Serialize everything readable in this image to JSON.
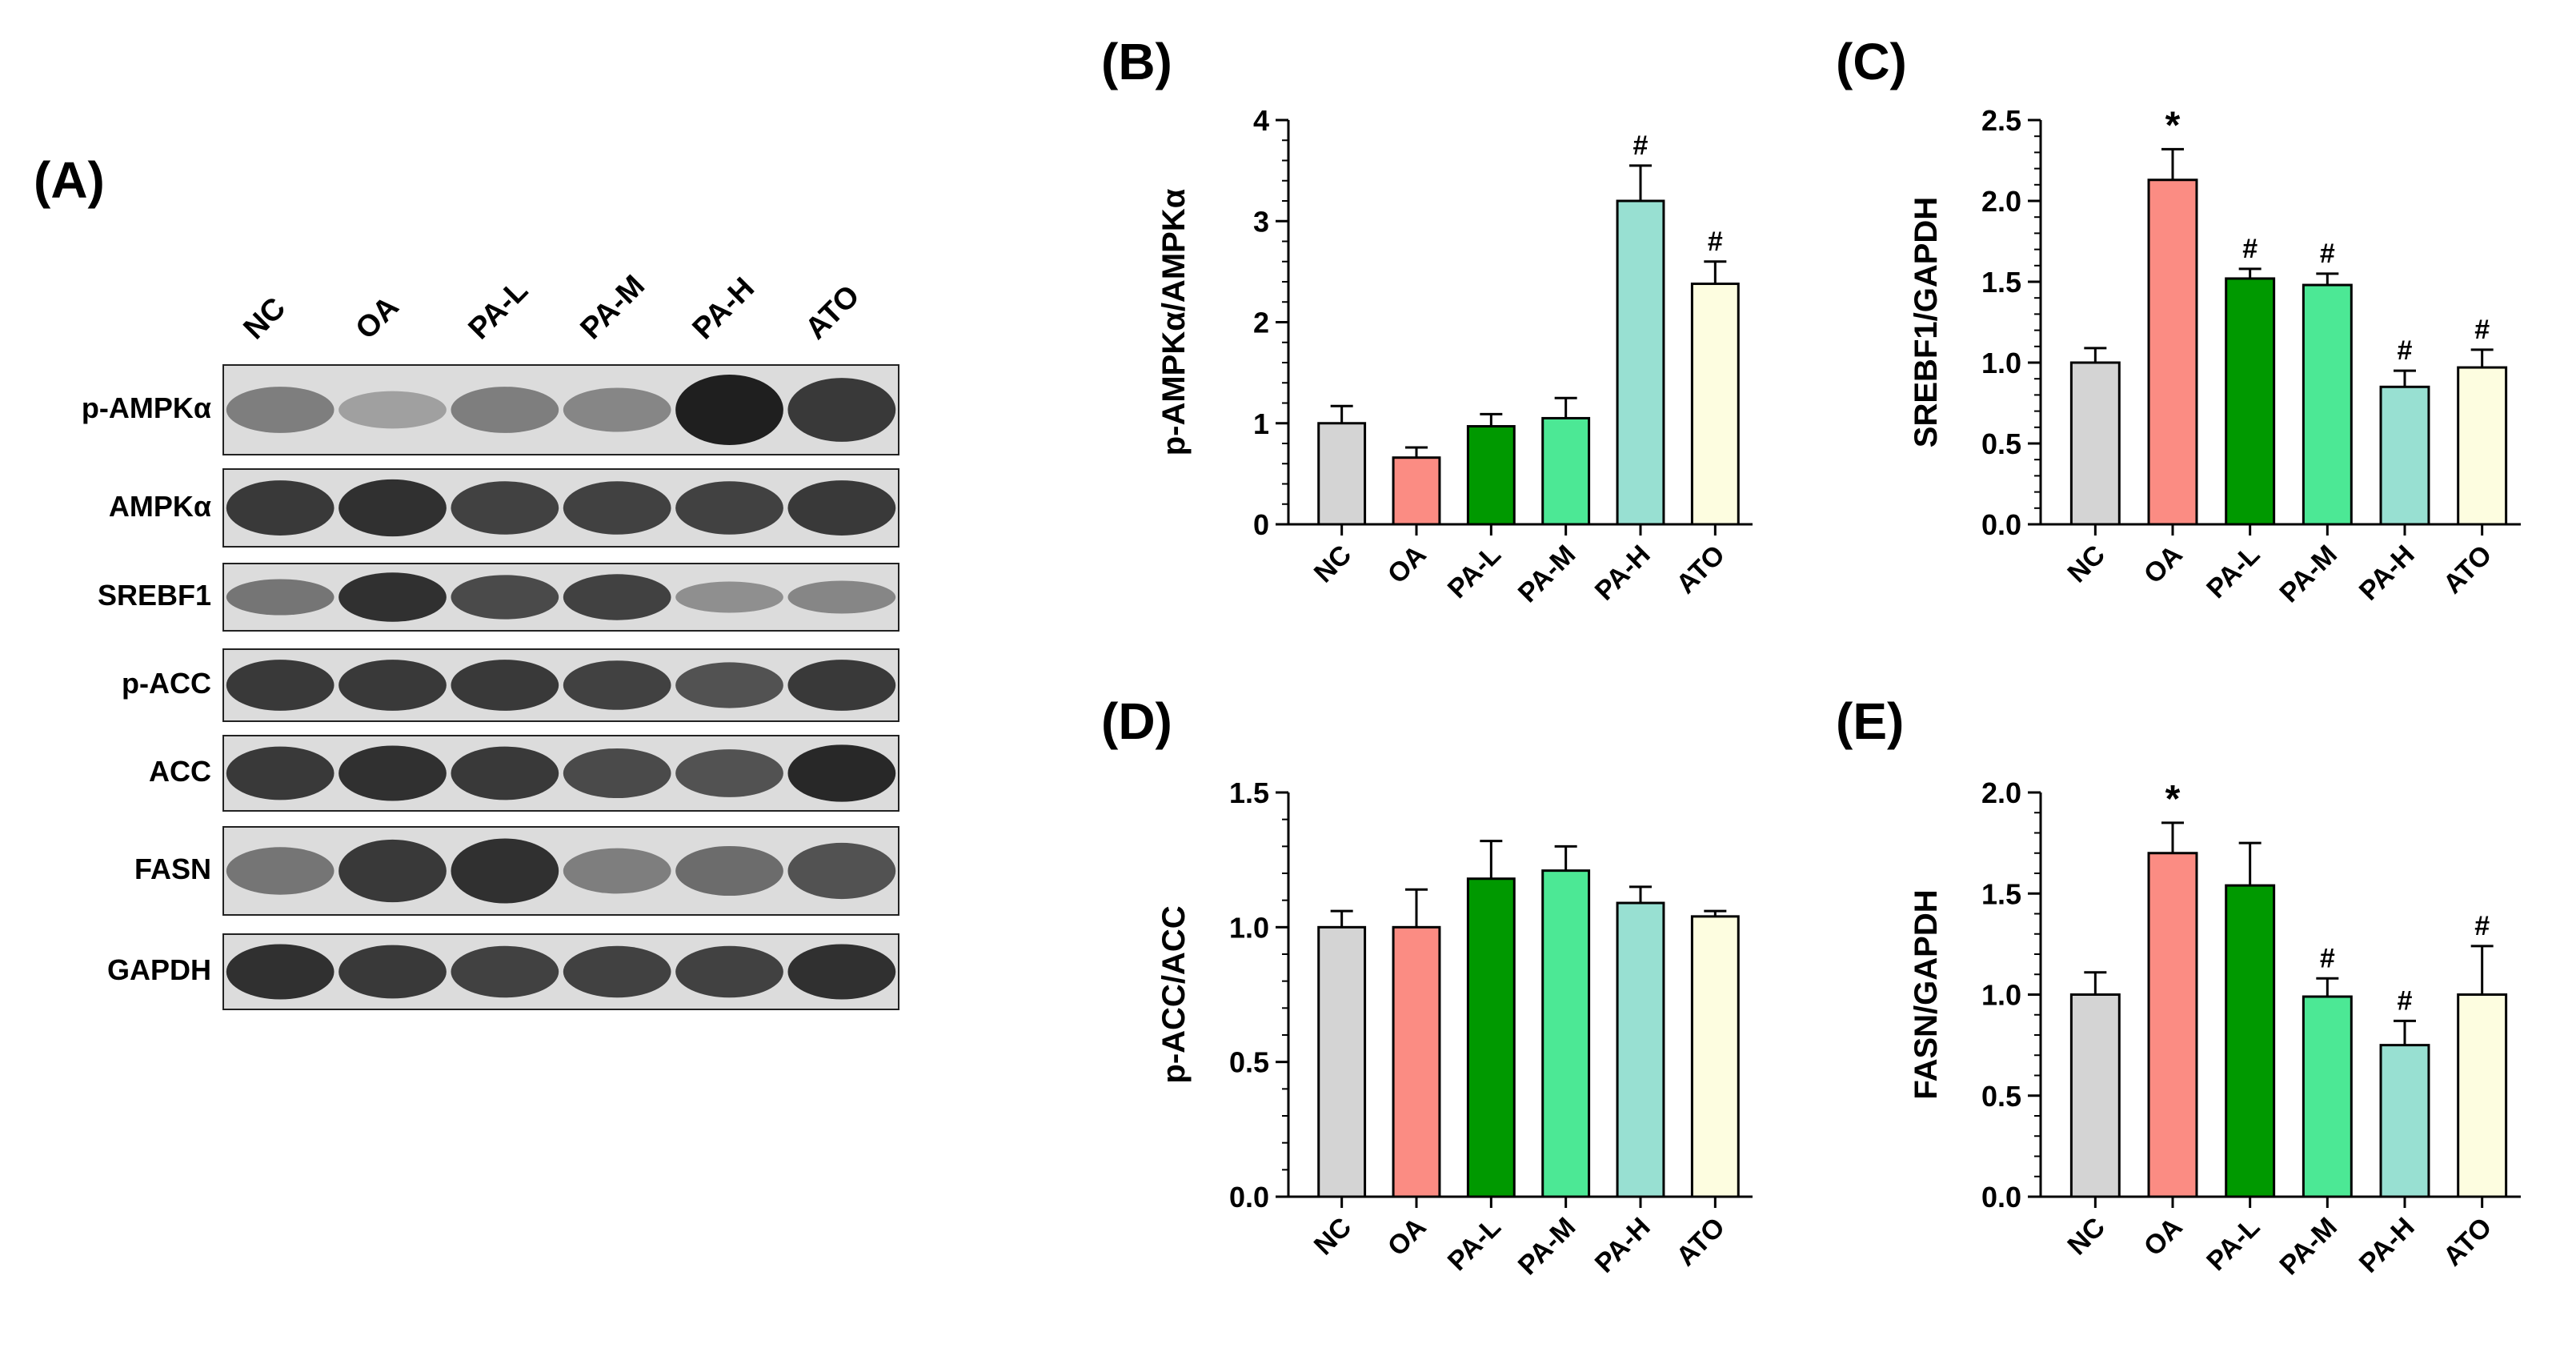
{
  "panel_labels": {
    "A": "(A)",
    "B": "(B)",
    "C": "(C)",
    "D": "(D)",
    "E": "(E)"
  },
  "blot": {
    "lanes": [
      "NC",
      "OA",
      "PA-L",
      "PA-M",
      "PA-H",
      "ATO"
    ],
    "rows": [
      {
        "label": "p-AMPKα",
        "intensity": [
          0.45,
          0.25,
          0.45,
          0.4,
          1.0,
          0.85
        ]
      },
      {
        "label": "AMPKα",
        "intensity": [
          0.85,
          0.9,
          0.8,
          0.8,
          0.8,
          0.85
        ]
      },
      {
        "label": "SREBF1",
        "intensity": [
          0.5,
          0.9,
          0.75,
          0.8,
          0.35,
          0.4
        ]
      },
      {
        "label": "p-ACC",
        "intensity": [
          0.85,
          0.85,
          0.85,
          0.8,
          0.7,
          0.85
        ]
      },
      {
        "label": "ACC",
        "intensity": [
          0.85,
          0.9,
          0.85,
          0.75,
          0.7,
          0.95
        ]
      },
      {
        "label": "FASN",
        "intensity": [
          0.5,
          0.85,
          0.9,
          0.45,
          0.55,
          0.7
        ]
      },
      {
        "label": "GAPDH",
        "intensity": [
          0.9,
          0.85,
          0.8,
          0.8,
          0.8,
          0.9
        ]
      }
    ]
  },
  "colors": {
    "NC": "#d4d4d4",
    "OA": "#fb8c83",
    "PA-L": "#009900",
    "PA-M": "#4ce895",
    "PA-H": "#98e0d2",
    "ATO": "#fdfde0"
  },
  "chart_data": [
    {
      "id": "B",
      "type": "bar",
      "categories": [
        "NC",
        "OA",
        "PA-L",
        "PA-M",
        "PA-H",
        "ATO"
      ],
      "values": [
        1.0,
        0.66,
        0.97,
        1.05,
        3.2,
        2.38
      ],
      "errors": [
        0.17,
        0.1,
        0.12,
        0.2,
        0.35,
        0.22
      ],
      "annotations": [
        "",
        "",
        "",
        "",
        "#",
        "#"
      ],
      "ylabel": "p-AMPKα/AMPKα",
      "ylim": [
        0,
        4
      ],
      "yticks": [
        "0",
        "1",
        "2",
        "3",
        "4"
      ],
      "ytick_values": [
        0,
        1,
        2,
        3,
        4
      ],
      "minor_step": 0.2
    },
    {
      "id": "C",
      "type": "bar",
      "categories": [
        "NC",
        "OA",
        "PA-L",
        "PA-M",
        "PA-H",
        "ATO"
      ],
      "values": [
        1.0,
        2.13,
        1.52,
        1.48,
        0.85,
        0.97
      ],
      "errors": [
        0.09,
        0.19,
        0.06,
        0.07,
        0.1,
        0.11
      ],
      "annotations": [
        "",
        "*",
        "#",
        "#",
        "#",
        "#"
      ],
      "ylabel": "SREBF1/GAPDH",
      "ylim": [
        0,
        2.5
      ],
      "yticks": [
        "0.0",
        "0.5",
        "1.0",
        "1.5",
        "2.0",
        "2.5"
      ],
      "ytick_values": [
        0,
        0.5,
        1.0,
        1.5,
        2.0,
        2.5
      ],
      "minor_step": 0.1
    },
    {
      "id": "D",
      "type": "bar",
      "categories": [
        "NC",
        "OA",
        "PA-L",
        "PA-M",
        "PA-H",
        "ATO"
      ],
      "values": [
        1.0,
        1.0,
        1.18,
        1.21,
        1.09,
        1.04
      ],
      "errors": [
        0.06,
        0.14,
        0.14,
        0.09,
        0.06,
        0.02
      ],
      "annotations": [
        "",
        "",
        "",
        "",
        "",
        ""
      ],
      "ylabel": "p-ACC/ACC",
      "ylim": [
        0,
        1.5
      ],
      "yticks": [
        "0.0",
        "0.5",
        "1.0",
        "1.5"
      ],
      "ytick_values": [
        0,
        0.5,
        1.0,
        1.5
      ],
      "minor_step": 0.1
    },
    {
      "id": "E",
      "type": "bar",
      "categories": [
        "NC",
        "OA",
        "PA-L",
        "PA-M",
        "PA-H",
        "ATO"
      ],
      "values": [
        1.0,
        1.7,
        1.54,
        0.99,
        0.75,
        1.0
      ],
      "errors": [
        0.11,
        0.15,
        0.21,
        0.09,
        0.12,
        0.24
      ],
      "annotations": [
        "",
        "*",
        "",
        "#",
        "#",
        "#"
      ],
      "ylabel": "FASN/GAPDH",
      "ylim": [
        0,
        2.0
      ],
      "yticks": [
        "0.0",
        "0.5",
        "1.0",
        "1.5",
        "2.0"
      ],
      "ytick_values": [
        0,
        0.5,
        1.0,
        1.5,
        2.0
      ],
      "minor_step": 0.1
    }
  ]
}
